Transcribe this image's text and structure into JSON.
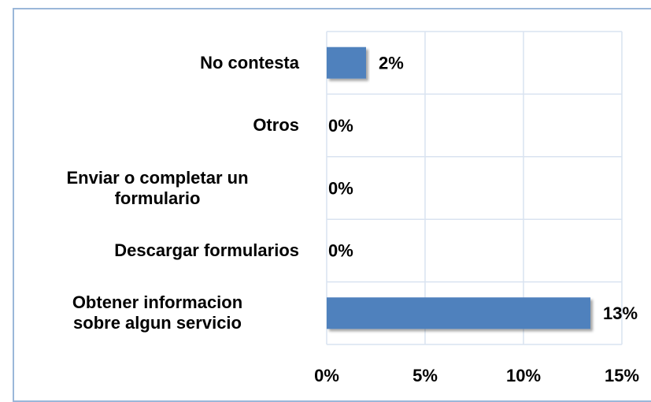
{
  "chart_data": {
    "type": "bar",
    "orientation": "horizontal",
    "categories": [
      "No contesta",
      "Otros",
      "Enviar o completar un\nformulario",
      "Descargar formularios",
      "Obtener informacion\nsobre algun servicio"
    ],
    "values": [
      2,
      0,
      0,
      0,
      13.4
    ],
    "value_labels": [
      "2%",
      "0%",
      "0%",
      "0%",
      "13%"
    ],
    "color": "#4f81bd",
    "xlim": [
      0,
      15
    ],
    "xticks": [
      {
        "value": 0,
        "label": "0%"
      },
      {
        "value": 5,
        "label": "5%"
      },
      {
        "value": 10,
        "label": "10%"
      },
      {
        "value": 15,
        "label": "15%"
      }
    ],
    "grid": true
  }
}
